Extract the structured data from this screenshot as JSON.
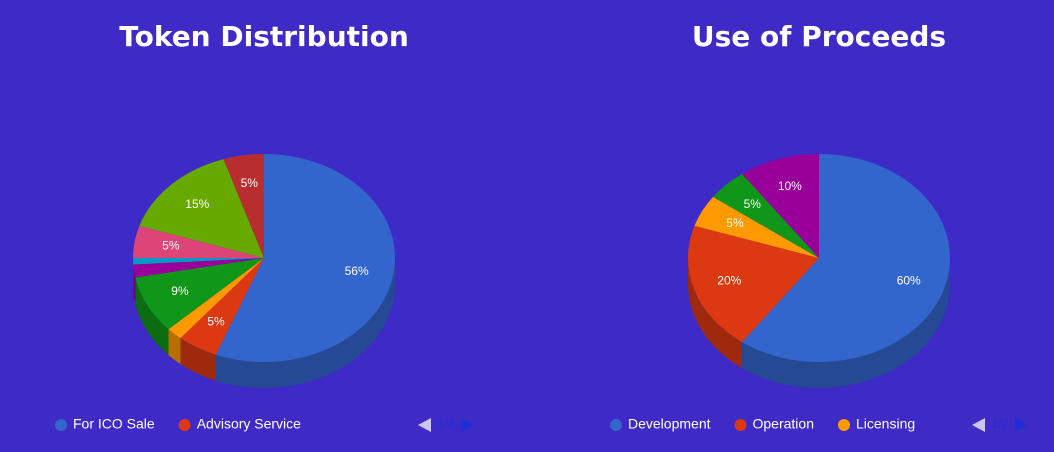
{
  "chart_data": [
    {
      "type": "pie3d",
      "title": "Token Distribution",
      "categories": [
        "For ICO Sale",
        "Advisory Service",
        null,
        null,
        null,
        null,
        null,
        null,
        null
      ],
      "values": [
        56,
        5,
        2,
        9,
        2,
        1,
        5,
        15,
        5
      ],
      "value_labels": [
        "56%",
        "5%",
        null,
        "9%",
        null,
        null,
        "5%",
        "15%",
        "5%"
      ],
      "colors": [
        "#3366cc",
        "#dc3912",
        "#ff9900",
        "#109618",
        "#990099",
        "#0099c6",
        "#dd4477",
        "#66aa00",
        "#b82e2e"
      ],
      "legend_page": "1/4"
    },
    {
      "type": "pie3d",
      "title": "Use of Proceeds",
      "categories": [
        "Development",
        "Operation",
        "Licensing",
        null,
        null
      ],
      "values": [
        60,
        20,
        5,
        5,
        10
      ],
      "value_labels": [
        "60%",
        "20%",
        "5%",
        "5%",
        "10%"
      ],
      "colors": [
        "#3366cc",
        "#dc3912",
        "#ff9900",
        "#109618",
        "#990099"
      ],
      "legend_page": "1/2"
    }
  ]
}
